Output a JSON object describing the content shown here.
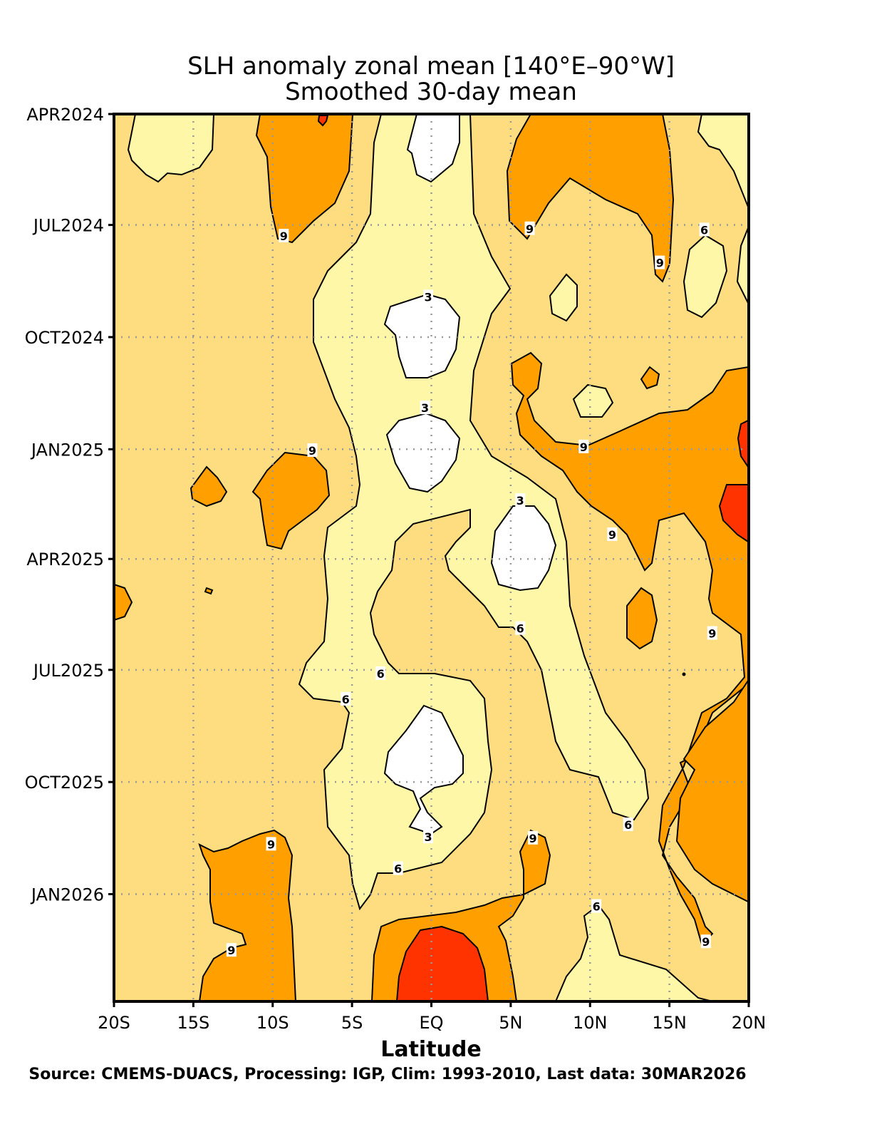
{
  "chart_data": {
    "type": "heatmap",
    "title": "SLH anomaly zonal mean [140°E–90°W]",
    "subtitle": "Smoothed 30-day mean",
    "xlabel": "Latitude",
    "ylabel": "",
    "source": "Source: CMEMS-DUACS, Processing: IGP, Clim: 1993-2010, Last data: 30MAR2026",
    "x_range": [
      -20,
      20
    ],
    "x_ticks": [
      {
        "value": -20,
        "label": "20S"
      },
      {
        "value": -15,
        "label": "15S"
      },
      {
        "value": -10,
        "label": "10S"
      },
      {
        "value": -5,
        "label": "5S"
      },
      {
        "value": 0,
        "label": "EQ"
      },
      {
        "value": 5,
        "label": "5N"
      },
      {
        "value": 10,
        "label": "10N"
      },
      {
        "value": 15,
        "label": "15N"
      },
      {
        "value": 20,
        "label": "20N"
      }
    ],
    "y_range": [
      "2024-04-01",
      "2026-03-30"
    ],
    "y_ticks": [
      {
        "value": "2024-04-01",
        "label": "APR2024"
      },
      {
        "value": "2024-07-01",
        "label": "JUL2024"
      },
      {
        "value": "2024-10-01",
        "label": "OCT2024"
      },
      {
        "value": "2025-01-01",
        "label": "JAN2025"
      },
      {
        "value": "2025-04-01",
        "label": "APR2025"
      },
      {
        "value": "2025-07-01",
        "label": "JUL2025"
      },
      {
        "value": "2025-10-01",
        "label": "OCT2025"
      },
      {
        "value": "2026-01-01",
        "label": "JAN2026"
      }
    ],
    "grid": true,
    "contour_levels": [
      3,
      6,
      9,
      12
    ],
    "colors": {
      "below_3": "#ffffff",
      "3_to_6": "#fff7a8",
      "6_to_9": "#ffe082",
      "9_to_12": "#ffa000",
      "above_12": "#ff3300",
      "background": "#fedd80"
    },
    "contour_labels": [
      {
        "lat": -9.3,
        "date": "2024-07-10",
        "label": "9"
      },
      {
        "lat": 6.2,
        "date": "2024-07-04",
        "label": "9"
      },
      {
        "lat": 14.4,
        "date": "2024-08-01",
        "label": "9"
      },
      {
        "lat": 17.2,
        "date": "2024-07-05",
        "label": "6"
      },
      {
        "lat": -0.2,
        "date": "2024-08-29",
        "label": "3"
      },
      {
        "lat": -0.4,
        "date": "2024-11-28",
        "label": "3"
      },
      {
        "lat": 9.6,
        "date": "2024-12-30",
        "label": "9"
      },
      {
        "lat": -7.5,
        "date": "2025-01-02",
        "label": "9"
      },
      {
        "lat": 5.6,
        "date": "2025-02-12",
        "label": "3"
      },
      {
        "lat": 11.4,
        "date": "2025-03-12",
        "label": "9"
      },
      {
        "lat": 5.6,
        "date": "2025-05-28",
        "label": "6"
      },
      {
        "lat": 17.7,
        "date": "2025-06-01",
        "label": "9"
      },
      {
        "lat": -3.2,
        "date": "2025-07-04",
        "label": "6"
      },
      {
        "lat": -5.4,
        "date": "2025-07-25",
        "label": "6"
      },
      {
        "lat": -0.2,
        "date": "2025-11-15",
        "label": "3"
      },
      {
        "lat": 12.4,
        "date": "2025-11-05",
        "label": "6"
      },
      {
        "lat": -10.1,
        "date": "2025-11-21",
        "label": "9"
      },
      {
        "lat": 6.4,
        "date": "2025-11-16",
        "label": "9"
      },
      {
        "lat": -2.1,
        "date": "2025-12-11",
        "label": "6"
      },
      {
        "lat": 10.4,
        "date": "2026-01-11",
        "label": "6"
      },
      {
        "lat": 17.3,
        "date": "2026-02-09",
        "label": "9"
      },
      {
        "lat": -12.6,
        "date": "2026-02-16",
        "label": "9"
      }
    ]
  }
}
